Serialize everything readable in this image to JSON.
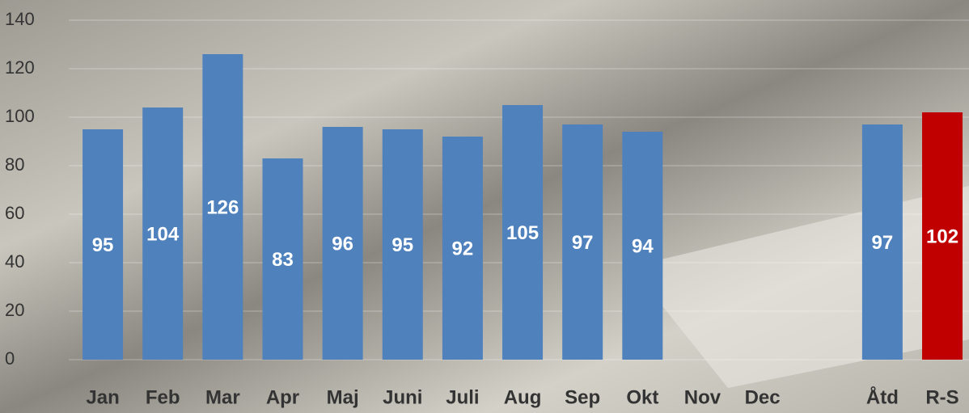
{
  "chart_data": {
    "type": "bar",
    "categories": [
      "Jan",
      "Feb",
      "Mar",
      "Apr",
      "Maj",
      "Juni",
      "Juli",
      "Aug",
      "Sep",
      "Okt",
      "Nov",
      "Dec",
      null,
      "Åtd",
      "R-S"
    ],
    "values": [
      95,
      104,
      126,
      83,
      96,
      95,
      92,
      105,
      97,
      94,
      null,
      null,
      null,
      97,
      102
    ],
    "colors": [
      "#4f81bd",
      "#4f81bd",
      "#4f81bd",
      "#4f81bd",
      "#4f81bd",
      "#4f81bd",
      "#4f81bd",
      "#4f81bd",
      "#4f81bd",
      "#4f81bd",
      "#4f81bd",
      "#4f81bd",
      "#4f81bd",
      "#4f81bd",
      "#c00000"
    ],
    "ylim": [
      0,
      140
    ],
    "yticks": [
      0,
      20,
      40,
      60,
      80,
      100,
      120,
      140
    ],
    "grid": true
  }
}
